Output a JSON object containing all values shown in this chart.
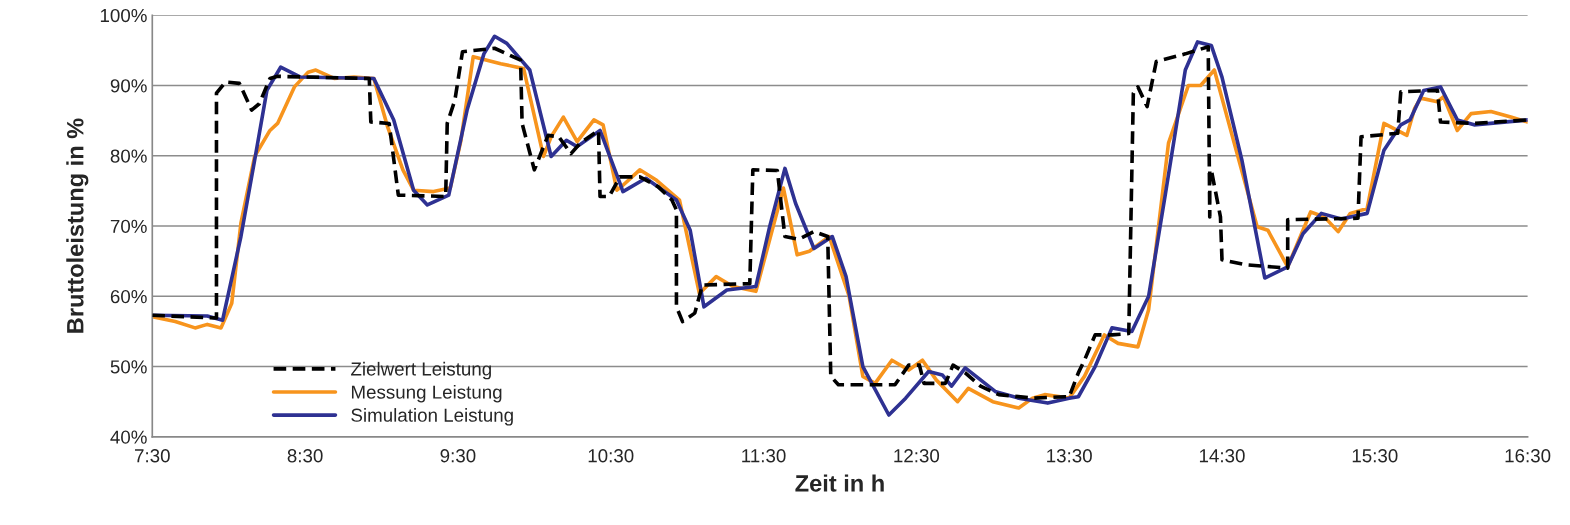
{
  "chart_data": {
    "type": "line",
    "xlabel": "Zeit in h",
    "ylabel": "Bruttoleistung in %",
    "xlim": [
      7.5,
      16.5
    ],
    "xticks": [
      {
        "value": 7.5,
        "label": "7:30"
      },
      {
        "value": 8.5,
        "label": "8:30"
      },
      {
        "value": 9.5,
        "label": "9:30"
      },
      {
        "value": 10.5,
        "label": "10:30"
      },
      {
        "value": 11.5,
        "label": "11:30"
      },
      {
        "value": 12.5,
        "label": "12:30"
      },
      {
        "value": 13.5,
        "label": "13:30"
      },
      {
        "value": 14.5,
        "label": "14:30"
      },
      {
        "value": 15.5,
        "label": "15:30"
      },
      {
        "value": 16.5,
        "label": "16:30"
      }
    ],
    "ylim": [
      40,
      100
    ],
    "yticks": [
      {
        "value": 40,
        "label": "40%"
      },
      {
        "value": 50,
        "label": "50%"
      },
      {
        "value": 60,
        "label": "60%"
      },
      {
        "value": 70,
        "label": "70%"
      },
      {
        "value": 80,
        "label": "80%"
      },
      {
        "value": 90,
        "label": "90%"
      },
      {
        "value": 100,
        "label": "100%"
      }
    ],
    "grid": "y",
    "legend": "bottom left",
    "series": [
      {
        "name": "Zielwert Leistung",
        "color": "#000000",
        "line_style": "dashed",
        "x": [
          7.5,
          7.92,
          7.92,
          7.98,
          8.07,
          8.15,
          8.2,
          8.27,
          8.32,
          8.92,
          8.93,
          9.05,
          9.11,
          9.42,
          9.43,
          9.48,
          9.53,
          9.74,
          9.91,
          9.92,
          10.0,
          10.09,
          10.16,
          10.24,
          10.3,
          10.42,
          10.43,
          10.49,
          10.56,
          10.69,
          10.81,
          10.9,
          10.93,
          10.93,
          10.97,
          11.05,
          11.1,
          11.41,
          11.43,
          11.59,
          11.64,
          11.73,
          11.83,
          11.92,
          11.94,
          11.99,
          12.36,
          12.45,
          12.52,
          12.55,
          12.69,
          12.74,
          12.82,
          12.92,
          13.04,
          13.26,
          13.47,
          13.5,
          13.56,
          13.6,
          13.67,
          13.78,
          13.89,
          13.92,
          13.95,
          14.01,
          14.07,
          14.26,
          14.41,
          14.42,
          14.42,
          14.43,
          14.49,
          14.5,
          14.65,
          14.93,
          14.93,
          15.39,
          15.41,
          15.65,
          15.67,
          15.91,
          15.93,
          16.15,
          16.5
        ],
        "values": [
          57.3,
          56.9,
          88.9,
          90.5,
          90.3,
          86.5,
          87.4,
          91.0,
          91.3,
          91.0,
          84.8,
          84.6,
          74.4,
          74.2,
          84.6,
          87.9,
          94.8,
          95.3,
          93.6,
          84.6,
          78.0,
          82.9,
          82.7,
          80.3,
          81.8,
          83.6,
          74.2,
          74.2,
          77.0,
          77.0,
          75.6,
          73.7,
          72.3,
          58.5,
          56.4,
          57.6,
          61.6,
          61.8,
          78.0,
          77.9,
          68.5,
          68.1,
          69.2,
          68.5,
          48.6,
          47.4,
          47.4,
          50.2,
          50.2,
          47.6,
          47.6,
          50.2,
          49.1,
          47.2,
          46.0,
          45.5,
          45.7,
          45.7,
          49.1,
          50.9,
          54.5,
          54.5,
          54.7,
          88.9,
          89.8,
          87.0,
          93.4,
          94.5,
          95.5,
          71.3,
          78.0,
          78.0,
          71.3,
          65.2,
          64.5,
          64.0,
          70.9,
          71.1,
          82.7,
          83.2,
          89.1,
          89.3,
          84.8,
          84.6,
          85.1
        ]
      },
      {
        "name": "Messung Leistung",
        "color": "#f7941d",
        "line_style": "solid",
        "x": [
          7.5,
          7.65,
          7.78,
          7.86,
          7.95,
          8.02,
          8.08,
          8.17,
          8.27,
          8.32,
          8.43,
          8.52,
          8.57,
          8.69,
          8.82,
          8.95,
          9.04,
          9.14,
          9.21,
          9.34,
          9.45,
          9.52,
          9.6,
          9.69,
          9.78,
          9.93,
          10.06,
          10.11,
          10.19,
          10.28,
          10.39,
          10.45,
          10.54,
          10.58,
          10.69,
          10.8,
          10.95,
          11.08,
          11.19,
          11.3,
          11.45,
          11.63,
          11.72,
          11.8,
          11.93,
          12.06,
          12.15,
          12.23,
          12.34,
          12.45,
          12.54,
          12.63,
          12.77,
          12.84,
          13.0,
          13.17,
          13.26,
          13.34,
          13.5,
          13.6,
          13.73,
          13.82,
          13.95,
          14.02,
          14.15,
          14.28,
          14.36,
          14.45,
          14.58,
          14.73,
          14.8,
          14.93,
          15.08,
          15.17,
          15.26,
          15.34,
          15.45,
          15.56,
          15.71,
          15.76,
          15.8,
          15.91,
          15.95,
          16.04,
          16.13,
          16.26,
          16.39,
          16.5
        ],
        "values": [
          57.1,
          56.4,
          55.5,
          56.0,
          55.5,
          59.0,
          70.4,
          79.9,
          83.6,
          84.6,
          89.8,
          91.9,
          92.2,
          91.0,
          91.2,
          91.0,
          84.1,
          78.0,
          75.1,
          74.9,
          75.4,
          82.2,
          94.1,
          93.6,
          93.1,
          92.4,
          79.9,
          82.7,
          85.5,
          82.0,
          85.1,
          84.4,
          75.1,
          75.8,
          78.0,
          76.5,
          73.7,
          60.4,
          62.8,
          61.4,
          60.7,
          75.4,
          65.9,
          66.4,
          68.5,
          60.0,
          48.6,
          47.6,
          50.9,
          49.5,
          50.9,
          48.1,
          45.0,
          46.9,
          45.0,
          44.1,
          45.5,
          46.0,
          45.5,
          48.6,
          54.5,
          53.3,
          52.8,
          58.1,
          81.8,
          90.0,
          90.0,
          92.2,
          81.8,
          69.9,
          69.4,
          64.2,
          72.0,
          71.3,
          69.2,
          71.8,
          72.5,
          84.6,
          82.9,
          86.7,
          88.2,
          87.7,
          88.4,
          83.6,
          86.0,
          86.3,
          85.5,
          84.8
        ]
      },
      {
        "name": "Simulation Leistung",
        "color": "#2e3192",
        "line_style": "solid",
        "x": [
          7.5,
          7.86,
          7.96,
          8.08,
          8.17,
          8.25,
          8.34,
          8.47,
          8.95,
          9.08,
          9.21,
          9.3,
          9.44,
          9.56,
          9.67,
          9.74,
          9.82,
          9.97,
          10.11,
          10.21,
          10.28,
          10.43,
          10.56,
          10.58,
          10.73,
          10.93,
          11.02,
          11.11,
          11.26,
          11.45,
          11.54,
          11.64,
          11.71,
          11.83,
          11.95,
          12.04,
          12.15,
          12.32,
          12.43,
          12.58,
          12.67,
          12.73,
          12.82,
          13.02,
          13.17,
          13.36,
          13.5,
          13.56,
          13.67,
          13.78,
          13.91,
          14.02,
          14.13,
          14.26,
          14.34,
          14.43,
          14.5,
          14.63,
          14.78,
          14.93,
          15.03,
          15.15,
          15.28,
          15.45,
          15.56,
          15.67,
          15.73,
          15.82,
          15.93,
          16.04,
          16.15,
          16.5
        ],
        "values": [
          57.3,
          57.2,
          56.6,
          68.5,
          79.4,
          89.3,
          92.6,
          91.2,
          91.0,
          85.1,
          75.1,
          73.0,
          74.4,
          86.5,
          94.5,
          97.0,
          96.0,
          92.2,
          79.9,
          82.2,
          81.3,
          83.6,
          76.1,
          74.9,
          76.8,
          73.7,
          69.4,
          58.5,
          60.9,
          61.4,
          69.9,
          78.2,
          73.2,
          66.8,
          68.5,
          62.8,
          50.0,
          43.1,
          45.5,
          49.3,
          48.8,
          47.2,
          49.8,
          46.4,
          45.5,
          44.8,
          45.5,
          45.7,
          50.0,
          55.5,
          55.0,
          60.0,
          74.6,
          92.2,
          96.2,
          95.7,
          91.2,
          79.4,
          62.6,
          64.2,
          68.9,
          71.8,
          71.0,
          71.8,
          80.8,
          84.4,
          85.1,
          89.3,
          89.8,
          85.1,
          84.4,
          85.1
        ]
      }
    ]
  }
}
